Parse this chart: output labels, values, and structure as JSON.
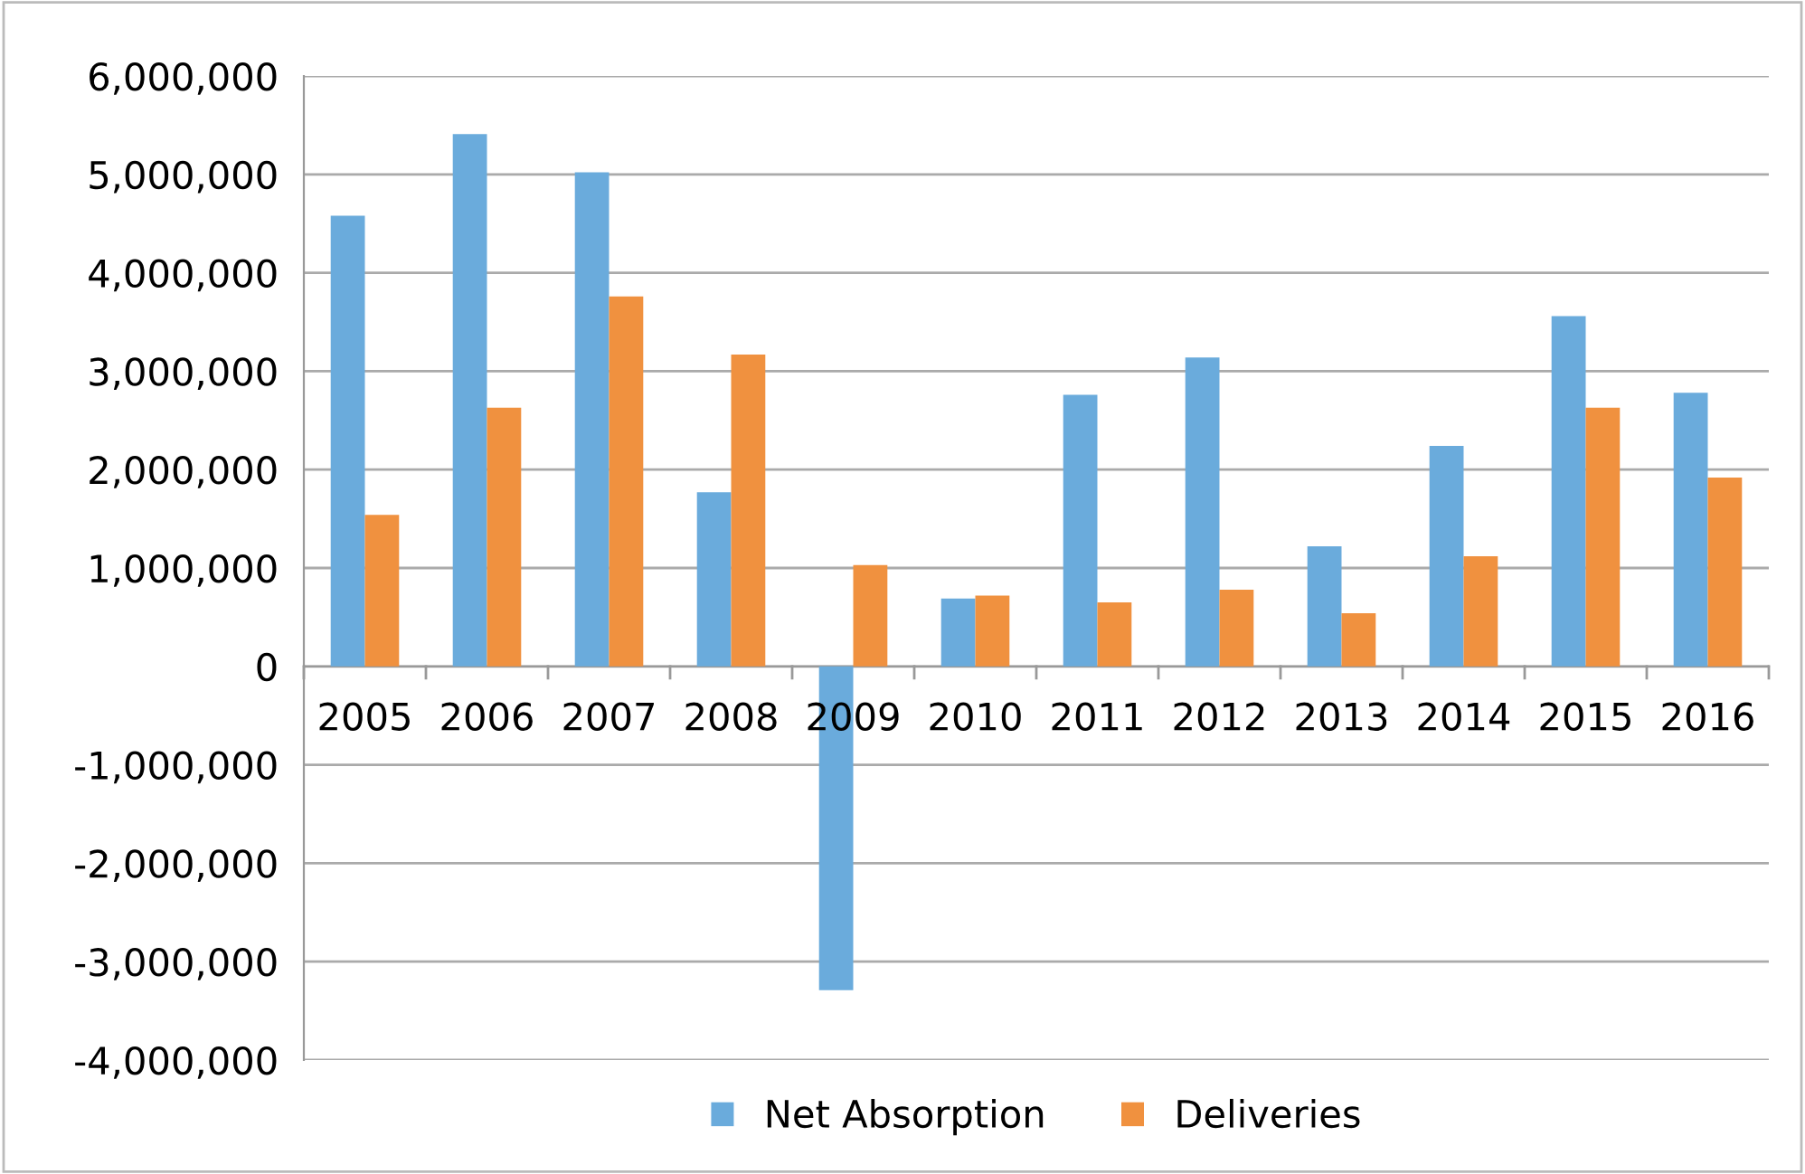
{
  "chart_data": {
    "type": "bar",
    "categories": [
      "2005",
      "2006",
      "2007",
      "2008",
      "2009",
      "2010",
      "2011",
      "2012",
      "2013",
      "2014",
      "2015",
      "2016"
    ],
    "series": [
      {
        "name": "Net Absorption",
        "color": "#6aabdc",
        "values": [
          4580000,
          5410000,
          5020000,
          1770000,
          -3290000,
          690000,
          2760000,
          3140000,
          1220000,
          2240000,
          3560000,
          2780000
        ]
      },
      {
        "name": "Deliveries",
        "color": "#f0913f",
        "values": [
          1540000,
          2630000,
          3760000,
          3170000,
          1030000,
          720000,
          650000,
          780000,
          540000,
          1120000,
          2630000,
          1920000
        ]
      }
    ],
    "ylim": [
      -4000000,
      6000000
    ],
    "yticks": [
      {
        "value": -4000000,
        "label": "-4,000,000"
      },
      {
        "value": -3000000,
        "label": "-3,000,000"
      },
      {
        "value": -2000000,
        "label": "-2,000,000"
      },
      {
        "value": -1000000,
        "label": "-1,000,000"
      },
      {
        "value": 0,
        "label": "0"
      },
      {
        "value": 1000000,
        "label": "1,000,000"
      },
      {
        "value": 2000000,
        "label": "2,000,000"
      },
      {
        "value": 3000000,
        "label": "3,000,000"
      },
      {
        "value": 4000000,
        "label": "4,000,000"
      },
      {
        "value": 5000000,
        "label": "5,000,000"
      },
      {
        "value": 6000000,
        "label": "6,000,000"
      }
    ],
    "grid": "y",
    "legend": "bottom"
  }
}
